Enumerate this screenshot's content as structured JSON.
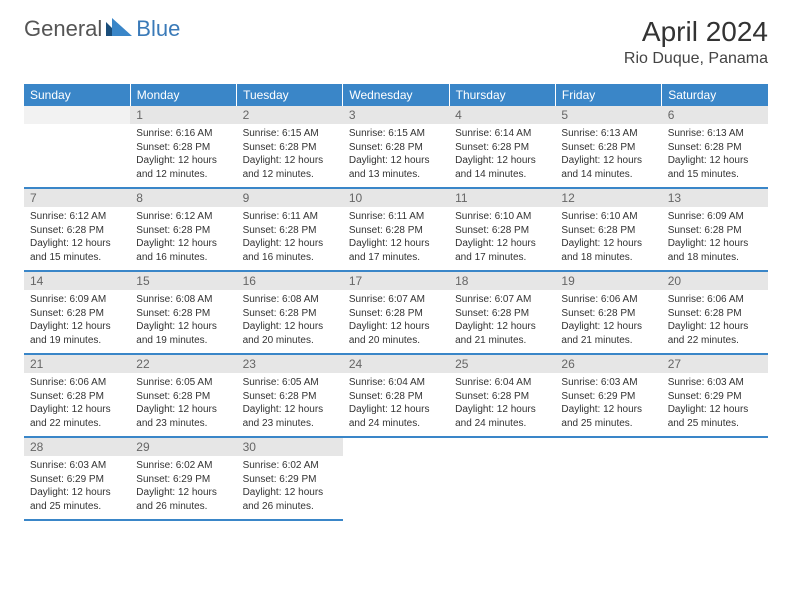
{
  "brand": {
    "general": "General",
    "blue": "Blue"
  },
  "title": "April 2024",
  "location": "Rio Duque, Panama",
  "colors": {
    "header_bg": "#3a86c8",
    "header_text": "#ffffff",
    "daynum_bg": "#e6e6e6",
    "daynum_text": "#666666",
    "border": "#3a86c8",
    "logo_blue": "#3a7ab8",
    "logo_dark": "#1a4d7a"
  },
  "weekdays": [
    "Sunday",
    "Monday",
    "Tuesday",
    "Wednesday",
    "Thursday",
    "Friday",
    "Saturday"
  ],
  "layout": {
    "start_weekday": 1,
    "days_in_month": 30,
    "rows": 5,
    "cols": 7
  },
  "days": {
    "1": {
      "sunrise": "6:16 AM",
      "sunset": "6:28 PM",
      "daylight": "12 hours and 12 minutes."
    },
    "2": {
      "sunrise": "6:15 AM",
      "sunset": "6:28 PM",
      "daylight": "12 hours and 12 minutes."
    },
    "3": {
      "sunrise": "6:15 AM",
      "sunset": "6:28 PM",
      "daylight": "12 hours and 13 minutes."
    },
    "4": {
      "sunrise": "6:14 AM",
      "sunset": "6:28 PM",
      "daylight": "12 hours and 14 minutes."
    },
    "5": {
      "sunrise": "6:13 AM",
      "sunset": "6:28 PM",
      "daylight": "12 hours and 14 minutes."
    },
    "6": {
      "sunrise": "6:13 AM",
      "sunset": "6:28 PM",
      "daylight": "12 hours and 15 minutes."
    },
    "7": {
      "sunrise": "6:12 AM",
      "sunset": "6:28 PM",
      "daylight": "12 hours and 15 minutes."
    },
    "8": {
      "sunrise": "6:12 AM",
      "sunset": "6:28 PM",
      "daylight": "12 hours and 16 minutes."
    },
    "9": {
      "sunrise": "6:11 AM",
      "sunset": "6:28 PM",
      "daylight": "12 hours and 16 minutes."
    },
    "10": {
      "sunrise": "6:11 AM",
      "sunset": "6:28 PM",
      "daylight": "12 hours and 17 minutes."
    },
    "11": {
      "sunrise": "6:10 AM",
      "sunset": "6:28 PM",
      "daylight": "12 hours and 17 minutes."
    },
    "12": {
      "sunrise": "6:10 AM",
      "sunset": "6:28 PM",
      "daylight": "12 hours and 18 minutes."
    },
    "13": {
      "sunrise": "6:09 AM",
      "sunset": "6:28 PM",
      "daylight": "12 hours and 18 minutes."
    },
    "14": {
      "sunrise": "6:09 AM",
      "sunset": "6:28 PM",
      "daylight": "12 hours and 19 minutes."
    },
    "15": {
      "sunrise": "6:08 AM",
      "sunset": "6:28 PM",
      "daylight": "12 hours and 19 minutes."
    },
    "16": {
      "sunrise": "6:08 AM",
      "sunset": "6:28 PM",
      "daylight": "12 hours and 20 minutes."
    },
    "17": {
      "sunrise": "6:07 AM",
      "sunset": "6:28 PM",
      "daylight": "12 hours and 20 minutes."
    },
    "18": {
      "sunrise": "6:07 AM",
      "sunset": "6:28 PM",
      "daylight": "12 hours and 21 minutes."
    },
    "19": {
      "sunrise": "6:06 AM",
      "sunset": "6:28 PM",
      "daylight": "12 hours and 21 minutes."
    },
    "20": {
      "sunrise": "6:06 AM",
      "sunset": "6:28 PM",
      "daylight": "12 hours and 22 minutes."
    },
    "21": {
      "sunrise": "6:06 AM",
      "sunset": "6:28 PM",
      "daylight": "12 hours and 22 minutes."
    },
    "22": {
      "sunrise": "6:05 AM",
      "sunset": "6:28 PM",
      "daylight": "12 hours and 23 minutes."
    },
    "23": {
      "sunrise": "6:05 AM",
      "sunset": "6:28 PM",
      "daylight": "12 hours and 23 minutes."
    },
    "24": {
      "sunrise": "6:04 AM",
      "sunset": "6:28 PM",
      "daylight": "12 hours and 24 minutes."
    },
    "25": {
      "sunrise": "6:04 AM",
      "sunset": "6:28 PM",
      "daylight": "12 hours and 24 minutes."
    },
    "26": {
      "sunrise": "6:03 AM",
      "sunset": "6:29 PM",
      "daylight": "12 hours and 25 minutes."
    },
    "27": {
      "sunrise": "6:03 AM",
      "sunset": "6:29 PM",
      "daylight": "12 hours and 25 minutes."
    },
    "28": {
      "sunrise": "6:03 AM",
      "sunset": "6:29 PM",
      "daylight": "12 hours and 25 minutes."
    },
    "29": {
      "sunrise": "6:02 AM",
      "sunset": "6:29 PM",
      "daylight": "12 hours and 26 minutes."
    },
    "30": {
      "sunrise": "6:02 AM",
      "sunset": "6:29 PM",
      "daylight": "12 hours and 26 minutes."
    }
  },
  "labels": {
    "sunrise_prefix": "Sunrise: ",
    "sunset_prefix": "Sunset: ",
    "daylight_prefix": "Daylight: "
  }
}
